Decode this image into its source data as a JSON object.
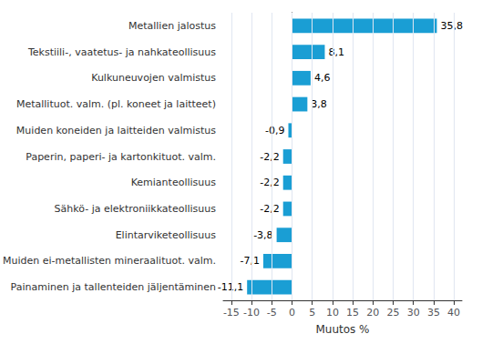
{
  "chart_data": {
    "type": "bar",
    "orientation": "horizontal",
    "xlabel": "Muutos %",
    "categories": [
      "Painaminen ja tallenteiden jäljentäminen",
      "Muiden ei-metallisten mineraalituot. valm.",
      "Elintarviketeollisuus",
      "Sähkö- ja elektroniikkateollisuus",
      "Kemianteollisuus",
      "Paperin, paperi- ja kartonkituot. valm.",
      "Muiden koneiden ja laitteiden valmistus",
      "Metallituot. valm. (pl. koneet ja laitteet)",
      "Kulkuneuvojen valmistus",
      "Tekstiili-, vaatetus- ja nahkateollisuus",
      "Metallien jalostus"
    ],
    "values": [
      -11.1,
      -7.1,
      -3.8,
      -2.2,
      -2.2,
      -2.2,
      -0.9,
      3.8,
      4.6,
      8.1,
      35.8
    ],
    "value_labels": [
      "-11,1",
      "-7,1",
      "-3,8",
      "-2,2",
      "-2,2",
      "-2,2",
      "-0,9",
      "3,8",
      "4,6",
      "8,1",
      "35,8"
    ],
    "data_labels": true,
    "color": "#1a9ed4",
    "xlim": [
      -17,
      42
    ],
    "xticks": [
      -15,
      -10,
      -5,
      0,
      5,
      10,
      15,
      20,
      25,
      30,
      35,
      40
    ],
    "grid": true
  }
}
